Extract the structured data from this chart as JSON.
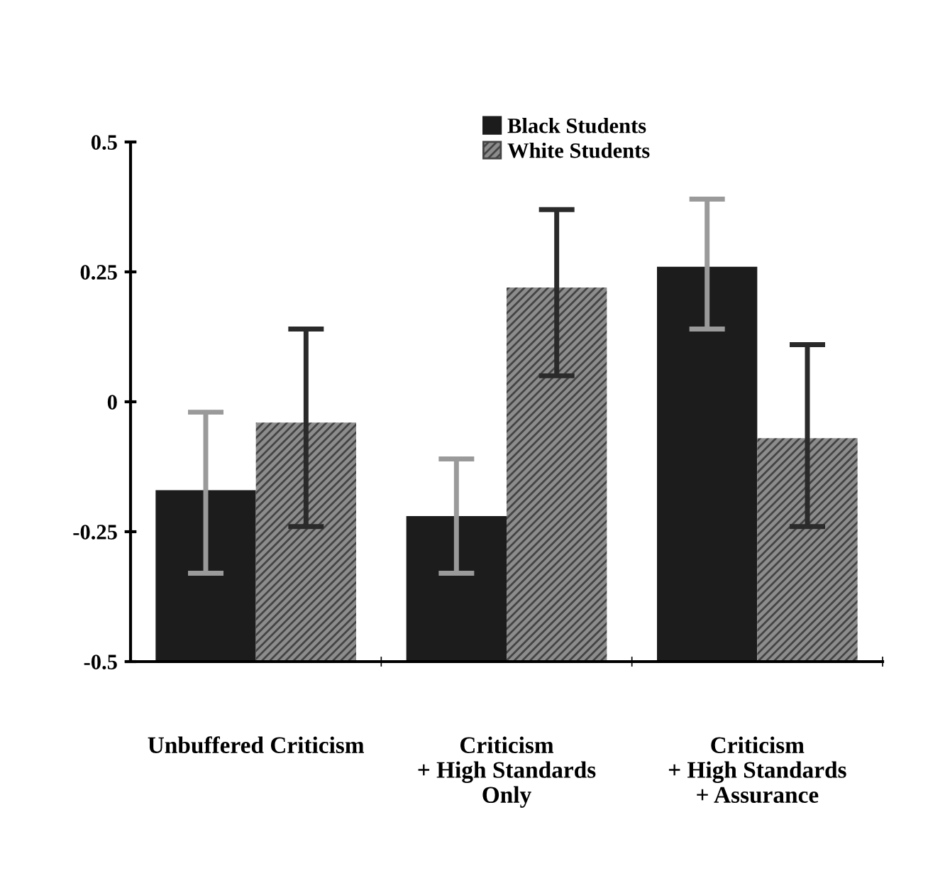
{
  "chart_data": {
    "type": "bar",
    "categories": [
      "Unbuffered Criticism",
      "Criticism\n+ High Standards\nOnly",
      "Criticism\n+ High Standards\n+ Assurance"
    ],
    "series": [
      {
        "name": "Black Students",
        "color": "#1c1c1c",
        "base": [
          -0.5,
          -0.5,
          -0.5
        ],
        "values": [
          0.33,
          0.28,
          0.76
        ],
        "errors": [
          [
            -0.33,
            -0.02
          ],
          [
            -0.33,
            -0.11
          ],
          [
            0.14,
            0.39
          ]
        ]
      },
      {
        "name": "White Students",
        "color": "#8c8c8c",
        "base": [
          -0.5,
          -0.5,
          -0.5
        ],
        "values": [
          0.46,
          0.72,
          0.43
        ],
        "errors": [
          [
            -0.24,
            0.14
          ],
          [
            0.05,
            0.37
          ],
          [
            -0.24,
            0.11
          ]
        ]
      }
    ],
    "ylim": [
      -0.5,
      0.5
    ],
    "yticks": [
      -0.5,
      -0.25,
      0,
      0.25,
      0.5
    ],
    "grid": false,
    "legend": "top"
  }
}
